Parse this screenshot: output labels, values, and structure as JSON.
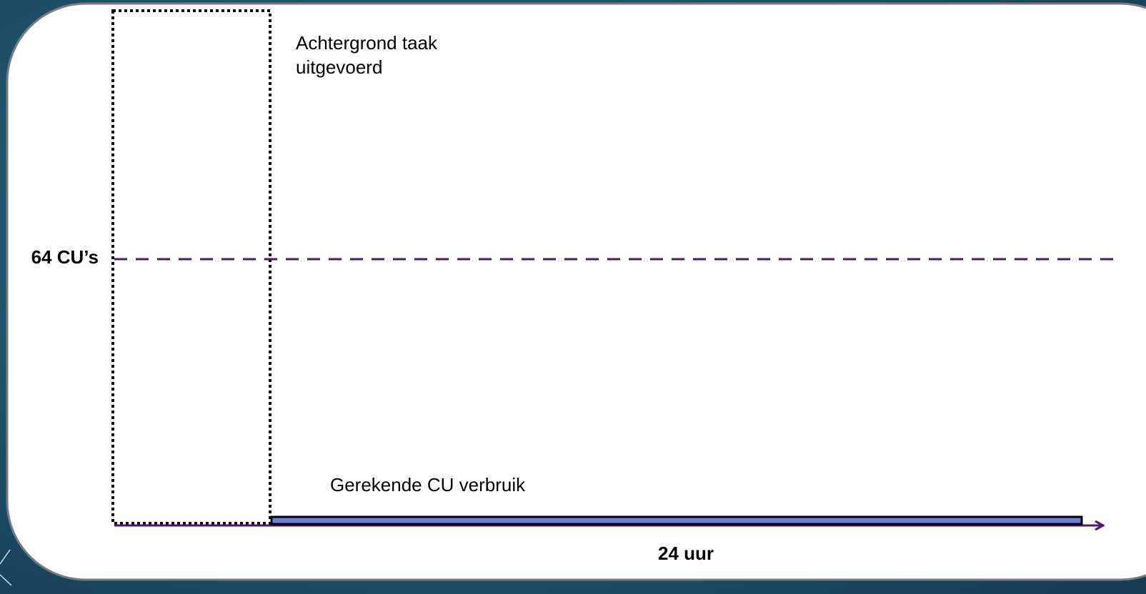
{
  "labels": {
    "background_task": [
      "Achtergrond taak",
      "uitgevoerd"
    ],
    "capacity": "64 CU’s",
    "billed_usage": "Gerekende CU verbruik",
    "duration": "24 uur"
  }
}
